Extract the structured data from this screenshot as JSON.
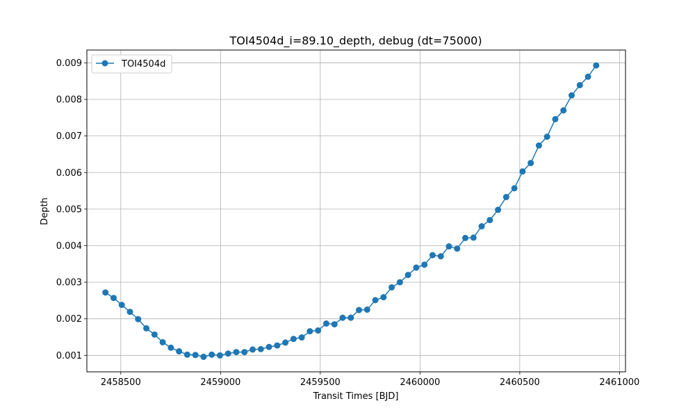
{
  "chart_data": {
    "type": "line",
    "title": "TOI4504d_i=89.10_depth, debug (dt=75000)",
    "xlabel": "Transit Times [BJD]",
    "ylabel": "Depth",
    "xlim": [
      2458330,
      2461030
    ],
    "ylim": [
      0.00055,
      0.00935
    ],
    "xticks": [
      2458500,
      2459000,
      2459500,
      2460000,
      2460500,
      2461000
    ],
    "xtick_labels": [
      "2458500",
      "2459000",
      "2459500",
      "2460000",
      "2460500",
      "2461000"
    ],
    "yticks": [
      0.001,
      0.002,
      0.003,
      0.004,
      0.005,
      0.006,
      0.007,
      0.008,
      0.009
    ],
    "ytick_labels": [
      "0.001",
      "0.002",
      "0.003",
      "0.004",
      "0.005",
      "0.006",
      "0.007",
      "0.008",
      "0.009"
    ],
    "grid": true,
    "legend": "top-left",
    "series": [
      {
        "name": "TOI4504d",
        "color": "#1f77b4",
        "marker": "circle",
        "x": [
          2458423,
          2458464,
          2458505,
          2458546,
          2458587,
          2458628,
          2458669,
          2458710,
          2458751,
          2458792,
          2458833,
          2458874,
          2458915,
          2458956,
          2458997,
          2459038,
          2459079,
          2459120,
          2459161,
          2459202,
          2459243,
          2459284,
          2459325,
          2459366,
          2459407,
          2459448,
          2459489,
          2459530,
          2459571,
          2459612,
          2459653,
          2459694,
          2459735,
          2459776,
          2459817,
          2459858,
          2459899,
          2459940,
          2459981,
          2460022,
          2460063,
          2460104,
          2460145,
          2460186,
          2460227,
          2460268,
          2460309,
          2460350,
          2460391,
          2460432,
          2460473,
          2460514,
          2460555,
          2460596,
          2460637,
          2460678,
          2460719,
          2460760,
          2460801,
          2460842,
          2460883
        ],
        "y": [
          0.00272,
          0.00257,
          0.00238,
          0.00219,
          0.00199,
          0.00174,
          0.00157,
          0.00136,
          0.00121,
          0.00111,
          0.00102,
          0.00101,
          0.00096,
          0.00102,
          0.001,
          0.00105,
          0.00109,
          0.00109,
          0.00116,
          0.00117,
          0.00123,
          0.00127,
          0.00135,
          0.00145,
          0.00149,
          0.00166,
          0.00168,
          0.00187,
          0.00185,
          0.00203,
          0.00203,
          0.00224,
          0.00225,
          0.00251,
          0.00259,
          0.00286,
          0.003,
          0.0032,
          0.0034,
          0.00348,
          0.00374,
          0.00371,
          0.00398,
          0.00392,
          0.00421,
          0.00422,
          0.00453,
          0.0047,
          0.00498,
          0.00533,
          0.00557,
          0.00603,
          0.00626,
          0.00674,
          0.00698,
          0.00746,
          0.0077,
          0.00811,
          0.00839,
          0.00862,
          0.00893
        ]
      }
    ]
  }
}
